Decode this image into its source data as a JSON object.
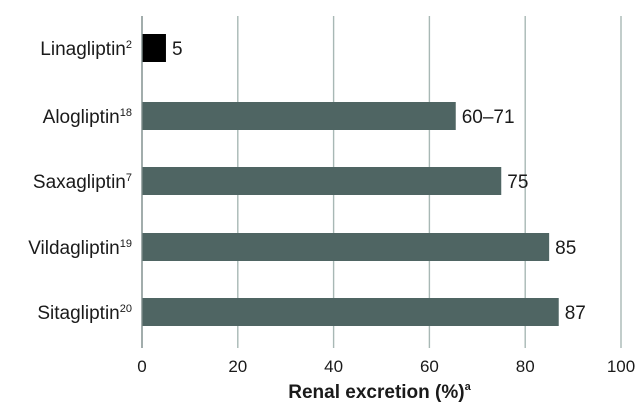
{
  "chart_data": {
    "type": "bar",
    "orientation": "horizontal",
    "categories": [
      {
        "name": "Linagliptin",
        "ref": "2"
      },
      {
        "name": "Alogliptin",
        "ref": "18"
      },
      {
        "name": "Saxagliptin",
        "ref": "7"
      },
      {
        "name": "Vildagliptin",
        "ref": "19"
      },
      {
        "name": "Sitagliptin",
        "ref": "20"
      }
    ],
    "values": [
      5,
      65.5,
      75,
      85,
      87
    ],
    "data_labels": [
      "5",
      "60–71",
      "75",
      "85",
      "87"
    ],
    "bar_colors": [
      "#000000",
      "#4f6563",
      "#4f6563",
      "#4f6563",
      "#4f6563"
    ],
    "xlabel": "Renal excretion (%)",
    "xlabel_sup": "a",
    "xlim": [
      0,
      100
    ],
    "xticks": [
      "0",
      "20",
      "40",
      "60",
      "80",
      "100"
    ],
    "grid": "vertical",
    "gridline_color": "#a8b8b5"
  }
}
